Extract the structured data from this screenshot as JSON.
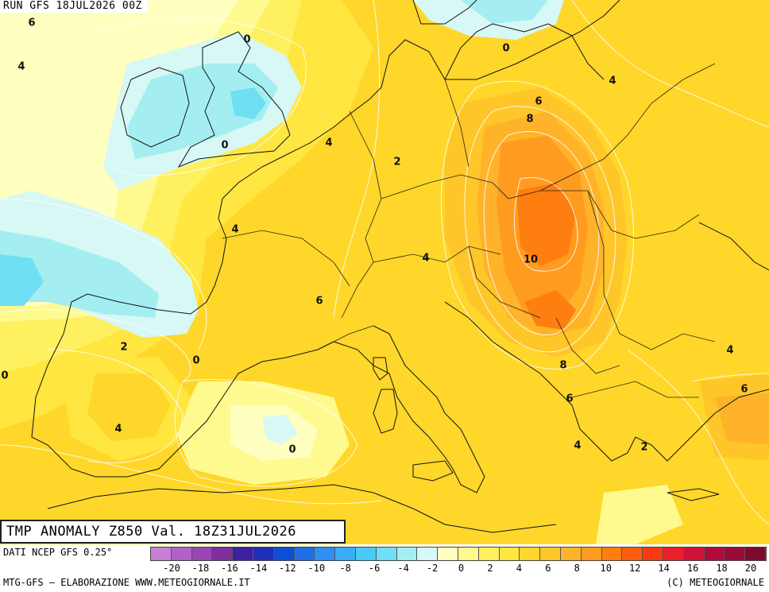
{
  "run_label": "RUN GFS 18JUL2026 00Z",
  "map_title": "TMP ANOMALY Z850 Val. 18Z31JUL2026",
  "data_source": "DATI NCEP GFS 0.25°",
  "credit": "MTG-GFS — ELABORAZIONE WWW.METEOGIORNALE.IT",
  "copyright": "(C) METEOGIORNALE",
  "legend": {
    "tick_labels": [
      "-20",
      "-18",
      "-16",
      "-14",
      "-12",
      "-10",
      "-8",
      "-6",
      "-4",
      "-2",
      "0",
      "2",
      "4",
      "6",
      "8",
      "10",
      "12",
      "14",
      "16",
      "18",
      "20"
    ],
    "colors": [
      "#c77fd6",
      "#b160c6",
      "#9a45b3",
      "#7d2f9c",
      "#3f1fa2",
      "#1f2fb8",
      "#0a4fd6",
      "#1f6fe8",
      "#2f8ff2",
      "#39aef6",
      "#4ccaf6",
      "#6fdff3",
      "#a4eef2",
      "#d7f8f4",
      "#ffffc0",
      "#fffa8f",
      "#fff060",
      "#ffe640",
      "#ffd72a",
      "#ffc62a",
      "#ffb32a",
      "#ff9c20",
      "#ff7e10",
      "#ff5c10",
      "#f73a10",
      "#e8202a",
      "#d0123a",
      "#b30a3a",
      "#9a0a3a",
      "#7d0a30"
    ]
  },
  "contour_labels": [
    {
      "text": "6"
    },
    {
      "text": "0"
    },
    {
      "text": "4"
    },
    {
      "text": "0"
    },
    {
      "text": "0"
    },
    {
      "text": "4"
    },
    {
      "text": "6"
    },
    {
      "text": "8"
    },
    {
      "text": "4"
    },
    {
      "text": "2"
    },
    {
      "text": "4"
    },
    {
      "text": "4"
    },
    {
      "text": "10"
    },
    {
      "text": "6"
    },
    {
      "text": "2"
    },
    {
      "text": "0"
    },
    {
      "text": "0"
    },
    {
      "text": "8"
    },
    {
      "text": "4"
    },
    {
      "text": "6"
    },
    {
      "text": "6"
    },
    {
      "text": "4"
    },
    {
      "text": "4"
    },
    {
      "text": "0"
    },
    {
      "text": "2"
    }
  ]
}
